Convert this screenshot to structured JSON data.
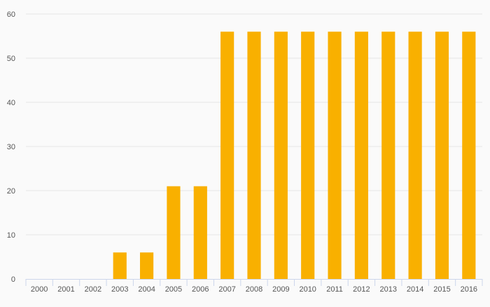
{
  "chart_data": {
    "type": "bar",
    "title": "",
    "xlabel": "",
    "ylabel": "",
    "categories": [
      "2000",
      "2001",
      "2002",
      "2003",
      "2004",
      "2005",
      "2006",
      "2007",
      "2008",
      "2009",
      "2010",
      "2011",
      "2012",
      "2013",
      "2014",
      "2015",
      "2016"
    ],
    "values": [
      0,
      0,
      0,
      6,
      6,
      21,
      21,
      56,
      56,
      56,
      56,
      56,
      56,
      56,
      56,
      56,
      56
    ],
    "ylim": [
      0,
      60
    ],
    "yticks": [
      0,
      10,
      20,
      30,
      40,
      50,
      60
    ],
    "grid": true,
    "legend": "none",
    "colors": {
      "bar": "#f9b000",
      "grid": "#e6e6e6",
      "axis": "#ccd6eb",
      "tick_text": "#555555"
    }
  }
}
